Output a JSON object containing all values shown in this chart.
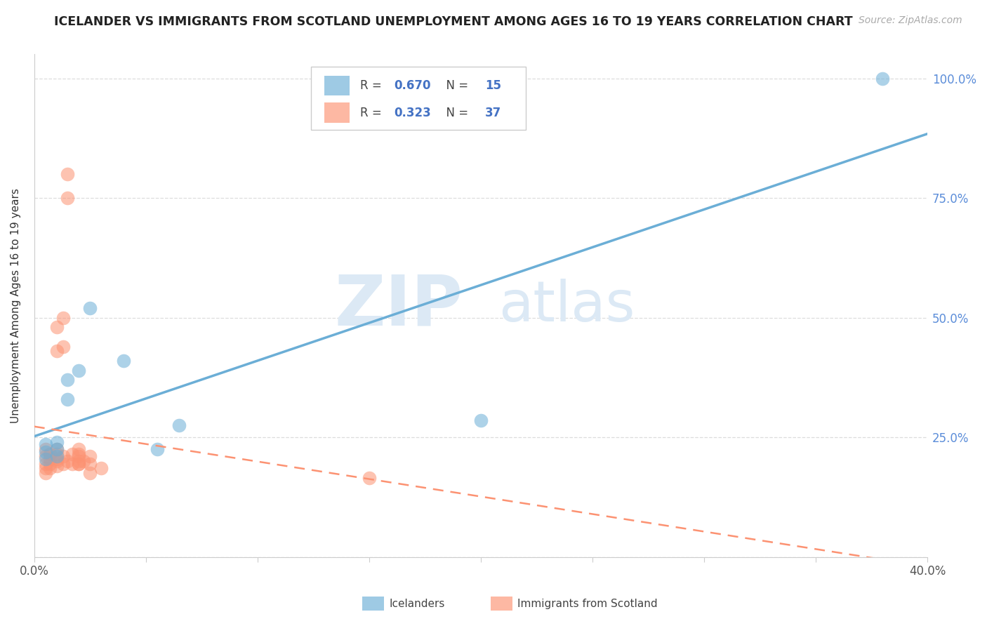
{
  "title": "ICELANDER VS IMMIGRANTS FROM SCOTLAND UNEMPLOYMENT AMONG AGES 16 TO 19 YEARS CORRELATION CHART",
  "source": "Source: ZipAtlas.com",
  "ylabel": "Unemployment Among Ages 16 to 19 years",
  "watermark_zip": "ZIP",
  "watermark_atlas": "atlas",
  "xlim": [
    0.0,
    0.4
  ],
  "ylim": [
    0.0,
    1.05
  ],
  "x_tick_positions": [
    0.0,
    0.05,
    0.1,
    0.15,
    0.2,
    0.25,
    0.3,
    0.35,
    0.4
  ],
  "y_tick_positions": [
    0.0,
    0.25,
    0.5,
    0.75,
    1.0
  ],
  "y_tick_labels": [
    "",
    "25.0%",
    "50.0%",
    "75.0%",
    "100.0%"
  ],
  "icelanders_R": 0.67,
  "icelanders_N": 15,
  "scotland_R": 0.323,
  "scotland_N": 37,
  "icelander_color": "#6baed6",
  "scotland_color": "#fc9272",
  "legend_label_1": "Icelanders",
  "legend_label_2": "Immigrants from Scotland",
  "icelander_x": [
    0.005,
    0.005,
    0.005,
    0.01,
    0.01,
    0.01,
    0.015,
    0.015,
    0.02,
    0.025,
    0.04,
    0.055,
    0.065,
    0.2,
    0.38
  ],
  "icelander_y": [
    0.205,
    0.22,
    0.235,
    0.21,
    0.225,
    0.24,
    0.33,
    0.37,
    0.39,
    0.52,
    0.41,
    0.225,
    0.275,
    0.285,
    1.0
  ],
  "scotland_x": [
    0.005,
    0.005,
    0.005,
    0.005,
    0.005,
    0.007,
    0.007,
    0.007,
    0.007,
    0.01,
    0.01,
    0.01,
    0.01,
    0.01,
    0.01,
    0.01,
    0.013,
    0.013,
    0.013,
    0.013,
    0.015,
    0.015,
    0.015,
    0.017,
    0.017,
    0.02,
    0.02,
    0.02,
    0.02,
    0.02,
    0.02,
    0.022,
    0.025,
    0.025,
    0.025,
    0.03,
    0.15
  ],
  "scotland_y": [
    0.195,
    0.21,
    0.225,
    0.175,
    0.185,
    0.195,
    0.205,
    0.215,
    0.185,
    0.48,
    0.43,
    0.2,
    0.215,
    0.225,
    0.19,
    0.205,
    0.5,
    0.44,
    0.195,
    0.21,
    0.75,
    0.8,
    0.2,
    0.195,
    0.215,
    0.195,
    0.21,
    0.2,
    0.215,
    0.225,
    0.195,
    0.2,
    0.195,
    0.21,
    0.175,
    0.185,
    0.165
  ],
  "background_color": "#ffffff",
  "grid_color": "#cccccc"
}
